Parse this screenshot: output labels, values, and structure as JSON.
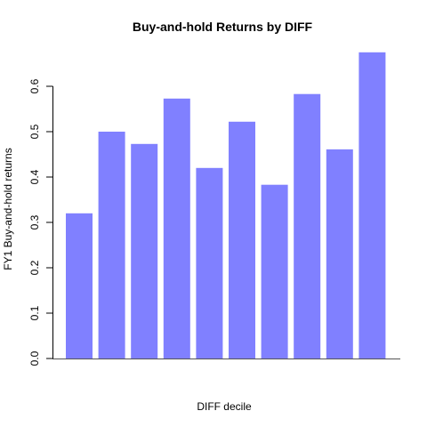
{
  "chart_data": {
    "type": "bar",
    "title": "Buy-and-hold Returns by DIFF",
    "xlabel": "DIFF decile",
    "ylabel": "FY1 Buy-and-hold returns",
    "categories": [
      "",
      "",
      "",
      "",
      "",
      "",
      "",
      "",
      "",
      ""
    ],
    "values": [
      0.32,
      0.5,
      0.473,
      0.573,
      0.42,
      0.522,
      0.383,
      0.583,
      0.461,
      0.675
    ],
    "ylim": [
      0,
      0.7
    ],
    "yticks": [
      0.0,
      0.1,
      0.2,
      0.3,
      0.4,
      0.5,
      0.6
    ],
    "ytick_labels": [
      "0.0",
      "0.1",
      "0.2",
      "0.3",
      "0.4",
      "0.5",
      "0.6"
    ],
    "bar_color": "#8080ff",
    "grid": false,
    "legend": "none"
  }
}
